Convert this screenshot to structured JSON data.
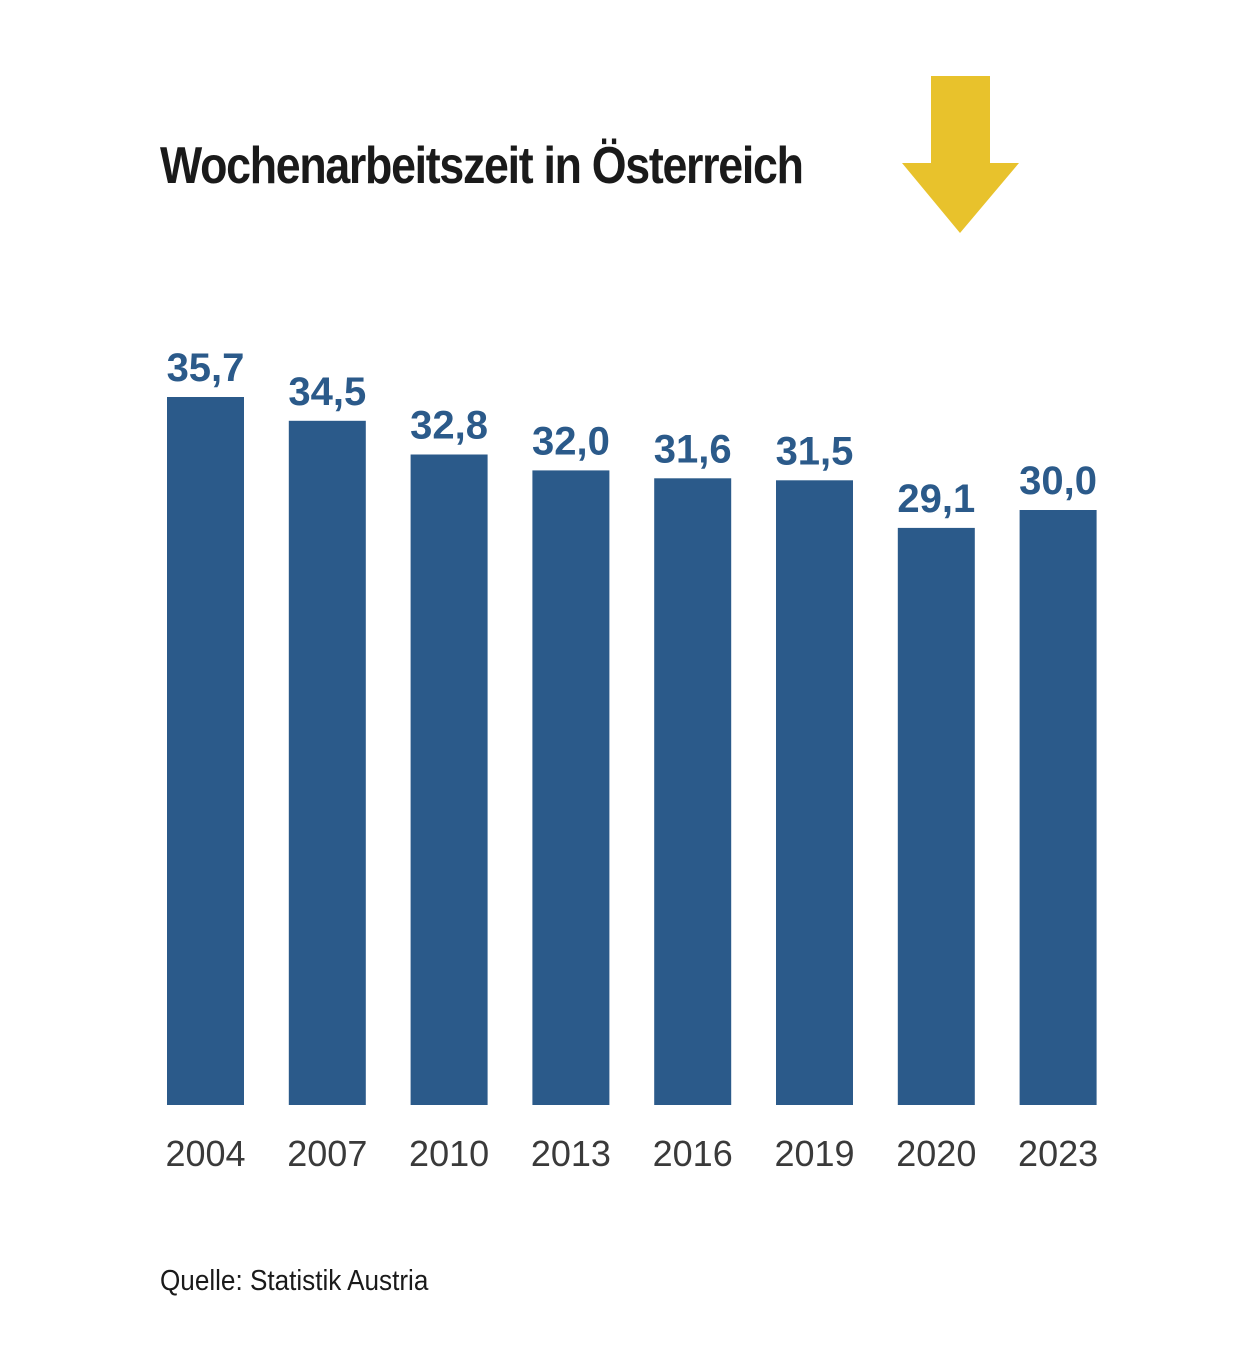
{
  "title": "Wochenarbeitszeit in Österreich",
  "source": "Quelle: Statistik Austria",
  "colors": {
    "bar": "#2b5a8a",
    "value_label": "#2b5a8a",
    "category_label": "#3a3a3a",
    "arrow": "#e8c22c"
  },
  "chart_data": {
    "type": "bar",
    "title": "Wochenarbeitszeit in Österreich",
    "xlabel": "",
    "ylabel": "",
    "categories": [
      "2004",
      "2007",
      "2010",
      "2013",
      "2016",
      "2019",
      "2020",
      "2023"
    ],
    "values": [
      35.7,
      34.5,
      32.8,
      32.0,
      31.6,
      31.5,
      29.1,
      30.0
    ],
    "value_labels": [
      "35,7",
      "34,5",
      "32,8",
      "32,0",
      "31,6",
      "31,5",
      "29,1",
      "30,0"
    ],
    "ylim": [
      0,
      35.7
    ],
    "grid": false,
    "legend": "none"
  }
}
